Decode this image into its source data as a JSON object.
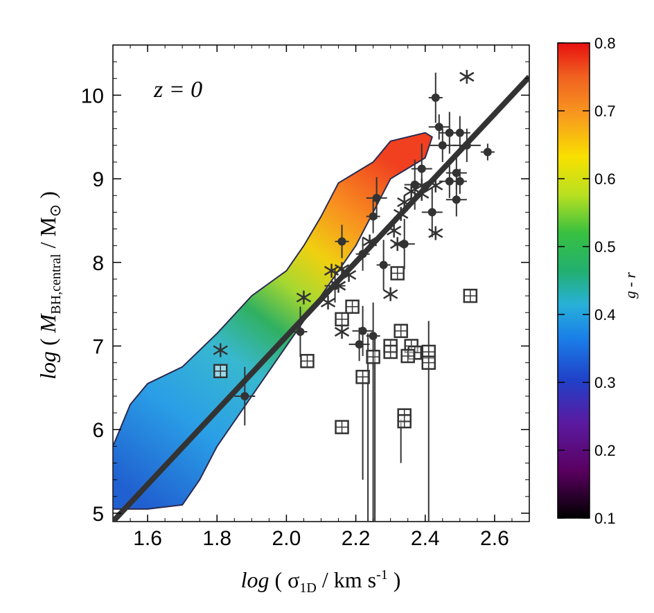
{
  "chart_data": {
    "type": "scatter",
    "annotation": "z = 0",
    "xlabel": {
      "prefix": "log",
      "open": " ( ",
      "symbol": "σ",
      "sub": "1D",
      "units": " / km s",
      "sup": "-1",
      "close": " )"
    },
    "ylabel": {
      "prefix": "log",
      "open": " ( ",
      "symbol": "M",
      "sub": "BH,central",
      "units": " / M",
      "sun": "⊙",
      "close": " )"
    },
    "xlim": [
      1.5,
      2.7
    ],
    "ylim": [
      4.9,
      10.6
    ],
    "xticks": [
      "1.6",
      "1.8",
      "2.0",
      "2.2",
      "2.4",
      "2.6"
    ],
    "xtick_values": [
      1.6,
      1.8,
      2.0,
      2.2,
      2.4,
      2.6
    ],
    "yticks": [
      "5",
      "6",
      "7",
      "8",
      "9",
      "10"
    ],
    "ytick_values": [
      5,
      6,
      7,
      8,
      9,
      10
    ],
    "colorbar": {
      "label": "g - r",
      "range": [
        0.1,
        0.8
      ],
      "ticks": [
        "0.1",
        "0.2",
        "0.3",
        "0.4",
        "0.5",
        "0.6",
        "0.7",
        "0.8"
      ],
      "tick_values": [
        0.1,
        0.2,
        0.3,
        0.4,
        0.5,
        0.6,
        0.7,
        0.8
      ]
    },
    "fit_line": {
      "x": [
        1.5,
        2.7
      ],
      "y": [
        4.9,
        10.22
      ]
    },
    "density_region": {
      "description": "simulated galaxies colored by g - r",
      "upper_edge": [
        [
          1.5,
          5.8
        ],
        [
          1.55,
          6.3
        ],
        [
          1.6,
          6.55
        ],
        [
          1.7,
          6.75
        ],
        [
          1.8,
          7.15
        ],
        [
          1.9,
          7.6
        ],
        [
          2.0,
          7.9
        ],
        [
          2.05,
          8.2
        ],
        [
          2.1,
          8.55
        ],
        [
          2.15,
          8.95
        ],
        [
          2.25,
          9.2
        ],
        [
          2.3,
          9.45
        ],
        [
          2.4,
          9.55
        ],
        [
          2.42,
          9.5
        ]
      ],
      "lower_edge": [
        [
          2.42,
          9.5
        ],
        [
          2.4,
          9.25
        ],
        [
          2.3,
          9.0
        ],
        [
          2.25,
          8.6
        ],
        [
          2.2,
          8.2
        ],
        [
          2.1,
          7.6
        ],
        [
          2.05,
          7.3
        ],
        [
          2.0,
          7.0
        ],
        [
          1.95,
          6.7
        ],
        [
          1.9,
          6.4
        ],
        [
          1.85,
          6.1
        ],
        [
          1.8,
          5.8
        ],
        [
          1.75,
          5.4
        ],
        [
          1.7,
          5.1
        ],
        [
          1.6,
          5.05
        ],
        [
          1.5,
          5.05
        ]
      ],
      "color_values": [
        0.38,
        0.42,
        0.48,
        0.58,
        0.66,
        0.72,
        0.76
      ]
    },
    "series": [
      {
        "name": "filled circles",
        "marker": "circle",
        "points": [
          {
            "x": 2.43,
            "y": 9.97,
            "xerr": 0.02,
            "yerr": 0.3
          },
          {
            "x": 2.44,
            "y": 9.62,
            "xerr": 0.03,
            "yerr": 0.15
          },
          {
            "x": 2.45,
            "y": 9.4,
            "xerr": 0.04,
            "yerr": 0.2
          },
          {
            "x": 2.47,
            "y": 9.55,
            "xerr": 0.03,
            "yerr": 0.25
          },
          {
            "x": 2.5,
            "y": 9.55,
            "xerr": 0.03,
            "yerr": 0.2
          },
          {
            "x": 2.52,
            "y": 9.4,
            "xerr": 0.04,
            "yerr": 0.2
          },
          {
            "x": 2.58,
            "y": 9.32,
            "xerr": 0.02,
            "yerr": 0.1
          },
          {
            "x": 2.49,
            "y": 9.07,
            "xerr": 0.03,
            "yerr": 0.2
          },
          {
            "x": 2.47,
            "y": 8.97,
            "xerr": 0.03,
            "yerr": 0.2
          },
          {
            "x": 2.42,
            "y": 8.6,
            "xerr": 0.03,
            "yerr": 0.3
          },
          {
            "x": 2.49,
            "y": 8.75,
            "xerr": 0.03,
            "yerr": 0.2
          },
          {
            "x": 2.5,
            "y": 8.97,
            "xerr": 0.02,
            "yerr": 0.15
          },
          {
            "x": 2.39,
            "y": 9.12,
            "xerr": 0.03,
            "yerr": 0.3
          },
          {
            "x": 2.37,
            "y": 8.93,
            "xerr": 0.03,
            "yerr": 0.3
          },
          {
            "x": 2.26,
            "y": 8.77,
            "xerr": 0.03,
            "yerr": 0.25
          },
          {
            "x": 2.25,
            "y": 8.55,
            "xerr": 0.02,
            "yerr": 0.2
          },
          {
            "x": 2.16,
            "y": 8.25,
            "xerr": 0.02,
            "yerr": 0.2
          },
          {
            "x": 2.34,
            "y": 8.22,
            "xerr": 0.03,
            "yerr": 0.3
          },
          {
            "x": 2.28,
            "y": 7.97,
            "xerr": 0.02,
            "yerr": 0.3
          },
          {
            "x": 2.22,
            "y": 8.1,
            "xerr": 0.02,
            "yerr": 0.2
          },
          {
            "x": 2.22,
            "y": 7.18,
            "xerr": 0.03,
            "yerr": 0.3
          },
          {
            "x": 2.25,
            "y": 7.12,
            "xerr": 0.02,
            "yerr": 0.4
          },
          {
            "x": 2.21,
            "y": 7.02,
            "xerr": 0.03,
            "yerr": 0.2
          },
          {
            "x": 2.04,
            "y": 7.17,
            "xerr": 0.02,
            "yerr": 0.3
          },
          {
            "x": 1.88,
            "y": 6.4,
            "xerr": 0.03,
            "yerr": 0.35
          },
          {
            "x": 2.14,
            "y": 7.72,
            "xerr": 0.03,
            "yerr": 0.2
          }
        ]
      },
      {
        "name": "asterisks",
        "marker": "star",
        "points": [
          {
            "x": 2.52,
            "y": 10.22
          },
          {
            "x": 2.39,
            "y": 8.82
          },
          {
            "x": 2.36,
            "y": 8.85
          },
          {
            "x": 2.39,
            "y": 8.92
          },
          {
            "x": 2.34,
            "y": 8.72
          },
          {
            "x": 2.33,
            "y": 8.58
          },
          {
            "x": 2.31,
            "y": 8.38
          },
          {
            "x": 2.32,
            "y": 8.22
          },
          {
            "x": 2.43,
            "y": 8.92
          },
          {
            "x": 2.43,
            "y": 8.35
          },
          {
            "x": 2.3,
            "y": 7.62
          },
          {
            "x": 2.24,
            "y": 8.25
          },
          {
            "x": 2.16,
            "y": 7.92
          },
          {
            "x": 2.13,
            "y": 7.9
          },
          {
            "x": 2.15,
            "y": 7.72
          },
          {
            "x": 2.12,
            "y": 7.52
          },
          {
            "x": 2.05,
            "y": 7.58
          },
          {
            "x": 2.16,
            "y": 7.17
          },
          {
            "x": 1.81,
            "y": 6.95
          },
          {
            "x": 2.18,
            "y": 7.85
          }
        ]
      },
      {
        "name": "open squares",
        "marker": "square",
        "points": [
          {
            "x": 2.53,
            "y": 7.6
          },
          {
            "x": 2.32,
            "y": 7.87
          },
          {
            "x": 2.19,
            "y": 7.47
          },
          {
            "x": 2.16,
            "y": 7.32
          },
          {
            "x": 2.33,
            "y": 7.18
          },
          {
            "x": 2.3,
            "y": 7.0
          },
          {
            "x": 2.3,
            "y": 6.93
          },
          {
            "x": 2.36,
            "y": 7.0
          },
          {
            "x": 2.37,
            "y": 6.92
          },
          {
            "x": 2.35,
            "y": 6.88
          },
          {
            "x": 2.41,
            "y": 6.93
          },
          {
            "x": 2.41,
            "y": 6.8
          },
          {
            "x": 2.25,
            "y": 6.87
          },
          {
            "x": 2.22,
            "y": 6.63
          },
          {
            "x": 2.34,
            "y": 6.17
          },
          {
            "x": 2.34,
            "y": 6.1
          },
          {
            "x": 2.16,
            "y": 6.03
          },
          {
            "x": 1.81,
            "y": 6.7
          },
          {
            "x": 2.06,
            "y": 6.82
          }
        ]
      }
    ]
  }
}
